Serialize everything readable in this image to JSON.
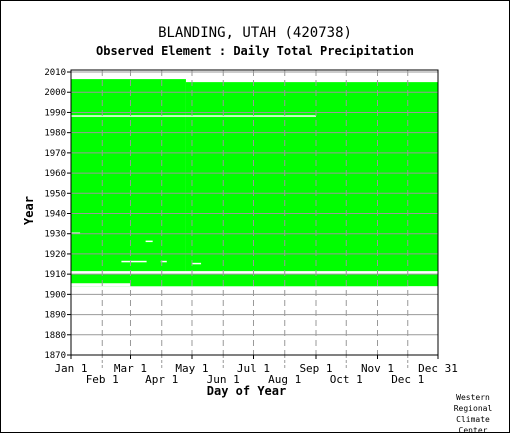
{
  "page": {
    "title": "BLANDING, UTAH   (420738)",
    "subtitle": "Observed Element : Daily Total Precipitation",
    "credit_lines": [
      "Western",
      "Regional",
      "Climate",
      "Center"
    ]
  },
  "colors": {
    "data_fill": "#00ff00",
    "grid": "#999999",
    "axis": "#000000",
    "background": "#ffffff"
  },
  "chart_data": {
    "type": "heatmap",
    "title": "BLANDING, UTAH   (420738)",
    "subtitle": "Observed Element : Daily Total Precipitation",
    "xlabel": "Day of Year",
    "ylabel": "Year",
    "xlim": [
      1,
      365
    ],
    "ylim": [
      1870,
      2011
    ],
    "grid": true,
    "x_ticks_upper": [
      {
        "label": "Jan 1",
        "day": 1
      },
      {
        "label": "Mar 1",
        "day": 60
      },
      {
        "label": "May 1",
        "day": 121
      },
      {
        "label": "Jul 1",
        "day": 182
      },
      {
        "label": "Sep 1",
        "day": 244
      },
      {
        "label": "Nov 1",
        "day": 305
      },
      {
        "label": "Dec 31",
        "day": 365
      }
    ],
    "x_ticks_lower": [
      {
        "label": "Feb 1",
        "day": 32
      },
      {
        "label": "Apr 1",
        "day": 91
      },
      {
        "label": "Jun 1",
        "day": 152
      },
      {
        "label": "Aug 1",
        "day": 213
      },
      {
        "label": "Oct 1",
        "day": 274
      },
      {
        "label": "Dec 1",
        "day": 335
      }
    ],
    "y_ticks": [
      2010,
      2000,
      1990,
      1980,
      1970,
      1960,
      1950,
      1940,
      1930,
      1920,
      1910,
      1900,
      1890,
      1880,
      1870
    ],
    "data_blocks": [
      {
        "name": "early-record",
        "x": [
          1,
          365
        ],
        "y": [
          1904,
          1910
        ]
      },
      {
        "name": "main-record-jan-apr",
        "x": [
          1,
          115
        ],
        "y": [
          1911,
          2006.5
        ]
      },
      {
        "name": "main-record-apr-dec",
        "x": [
          115,
          365
        ],
        "y": [
          1911,
          2005
        ]
      }
    ],
    "missing_periods": [
      {
        "x": [
          1,
          365
        ],
        "y": [
          1910,
          1911
        ]
      },
      {
        "x": [
          1,
          365
        ],
        "y": [
          1911,
          1911.5
        ]
      },
      {
        "x": [
          1,
          244
        ],
        "y": [
          1988,
          1988.6
        ]
      },
      {
        "x": [
          1,
          60
        ],
        "y": [
          1904,
          1905.5
        ]
      },
      {
        "x": [
          1,
          10
        ],
        "y": [
          1930,
          1930.6
        ]
      },
      {
        "x": [
          75,
          82
        ],
        "y": [
          1926,
          1926.6
        ]
      },
      {
        "x": [
          51,
          76
        ],
        "y": [
          1916,
          1916.6
        ]
      },
      {
        "x": [
          90,
          96
        ],
        "y": [
          1916,
          1916.6
        ]
      },
      {
        "x": [
          121,
          130
        ],
        "y": [
          1915,
          1915.6
        ]
      },
      {
        "x": [
          335,
          365
        ],
        "y": [
          1903,
          1904
        ]
      }
    ]
  }
}
